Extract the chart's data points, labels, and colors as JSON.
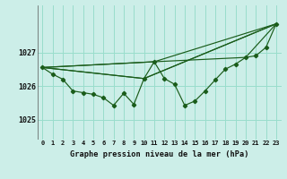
{
  "title": "Graphe pression niveau de la mer (hPa)",
  "background_color": "#cceee8",
  "grid_color": "#99ddcc",
  "line_color": "#1a5c1a",
  "xlim": [
    -0.5,
    23.5
  ],
  "ylim": [
    1024.4,
    1028.4
  ],
  "yticks": [
    1025,
    1026,
    1027
  ],
  "xticks": [
    0,
    1,
    2,
    3,
    4,
    5,
    6,
    7,
    8,
    9,
    10,
    11,
    12,
    13,
    14,
    15,
    16,
    17,
    18,
    19,
    20,
    21,
    22,
    23
  ],
  "main_x": [
    0,
    1,
    2,
    3,
    4,
    5,
    6,
    7,
    8,
    9,
    10,
    11,
    12,
    13,
    14,
    15,
    16,
    17,
    18,
    19,
    20,
    21,
    22,
    23
  ],
  "main_y": [
    1026.55,
    1026.35,
    1026.2,
    1025.85,
    1025.8,
    1025.75,
    1025.65,
    1025.42,
    1025.78,
    1025.45,
    1026.22,
    1026.72,
    1026.22,
    1026.05,
    1025.42,
    1025.55,
    1025.85,
    1026.18,
    1026.5,
    1026.65,
    1026.85,
    1026.9,
    1027.15,
    1027.85
  ],
  "envelope_lines": [
    {
      "x": [
        0,
        11,
        23
      ],
      "y": [
        1026.55,
        1026.72,
        1027.85
      ]
    },
    {
      "x": [
        0,
        10,
        23
      ],
      "y": [
        1026.55,
        1026.22,
        1027.85
      ]
    },
    {
      "x": [
        0,
        10,
        23
      ],
      "y": [
        1026.55,
        1026.22,
        1027.85
      ]
    },
    {
      "x": [
        0,
        11,
        20,
        23
      ],
      "y": [
        1026.55,
        1026.72,
        1026.85,
        1027.85
      ]
    }
  ]
}
